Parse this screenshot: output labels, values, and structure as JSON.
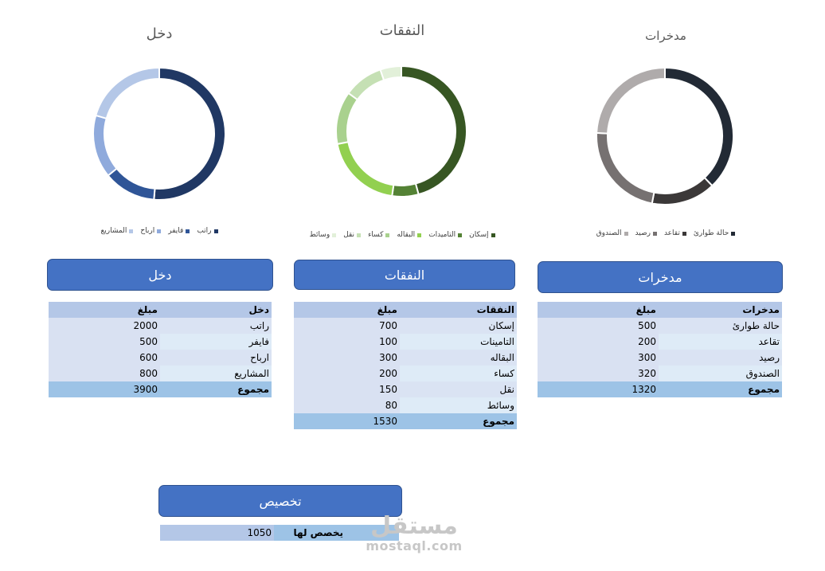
{
  "chart_data": [
    {
      "type": "pie",
      "title": "دخل",
      "categories": [
        "راتب",
        "فايفر",
        "ارباح",
        "المشاريع"
      ],
      "values": [
        2000,
        500,
        600,
        800
      ],
      "colors": [
        "#203864",
        "#2f5597",
        "#8faadc",
        "#b4c7e7"
      ],
      "donut": true,
      "legend": "bottom"
    },
    {
      "type": "pie",
      "title": "النفقات",
      "categories": [
        "إسكان",
        "التامينات",
        "البقاله",
        "كساء",
        "نقل",
        "وسائط"
      ],
      "legend_labels": [
        "إسكان",
        "التاميدات",
        "البقاله",
        "كساء",
        "نقل",
        "وسائط"
      ],
      "values": [
        700,
        100,
        300,
        200,
        150,
        80
      ],
      "colors": [
        "#375623",
        "#548235",
        "#92d050",
        "#a9d18e",
        "#c5e0b4",
        "#e2f0d9"
      ],
      "donut": true,
      "legend": "bottom"
    },
    {
      "type": "pie",
      "title": "مدخرات",
      "categories": [
        "حالة طوارئ",
        "تقاعد",
        "رصيد",
        "الصندوق"
      ],
      "legend_labels": [
        "حالة طوارئ",
        "تقاعد",
        "رصيد",
        "الصندوق"
      ],
      "values": [
        500,
        200,
        300,
        320
      ],
      "colors": [
        "#222a35",
        "#3b3838",
        "#767171",
        "#afabab"
      ],
      "donut": true,
      "legend": "bottom"
    }
  ],
  "sections": {
    "income": {
      "header": "دخل",
      "col_name": "دخل",
      "col_value": "مبلغ",
      "rows": [
        {
          "name": "راتب",
          "value": "2000"
        },
        {
          "name": "فايفر",
          "value": "500"
        },
        {
          "name": "ارباح",
          "value": "600"
        },
        {
          "name": "المشاريع",
          "value": "800"
        }
      ],
      "total_label": "مجموع",
      "total_value": "3900"
    },
    "expenses": {
      "header": "النفقات",
      "col_name": "النفقات",
      "col_value": "مبلغ",
      "rows": [
        {
          "name": "إسكان",
          "value": "700"
        },
        {
          "name": "التامينات",
          "value": "100"
        },
        {
          "name": "البقاله",
          "value": "300"
        },
        {
          "name": "كساء",
          "value": "200"
        },
        {
          "name": "نقل",
          "value": "150"
        },
        {
          "name": "وسائط",
          "value": "80"
        }
      ],
      "total_label": "مجموع",
      "total_value": "1530"
    },
    "savings": {
      "header": "مدخرات",
      "col_name": "مدخرات",
      "col_value": "مبلغ",
      "rows": [
        {
          "name": "حالة طوارئ",
          "value": "500"
        },
        {
          "name": "تقاعد",
          "value": "200"
        },
        {
          "name": "رصيد",
          "value": "300"
        },
        {
          "name": "الصندوق",
          "value": "320"
        }
      ],
      "total_label": "مجموع",
      "total_value": "1320"
    },
    "allocation": {
      "header": "تخصيص",
      "label": "يخصص لها",
      "value": "1050"
    }
  },
  "watermark": {
    "arabic": "مستقل",
    "latin": "mostaql.com"
  }
}
